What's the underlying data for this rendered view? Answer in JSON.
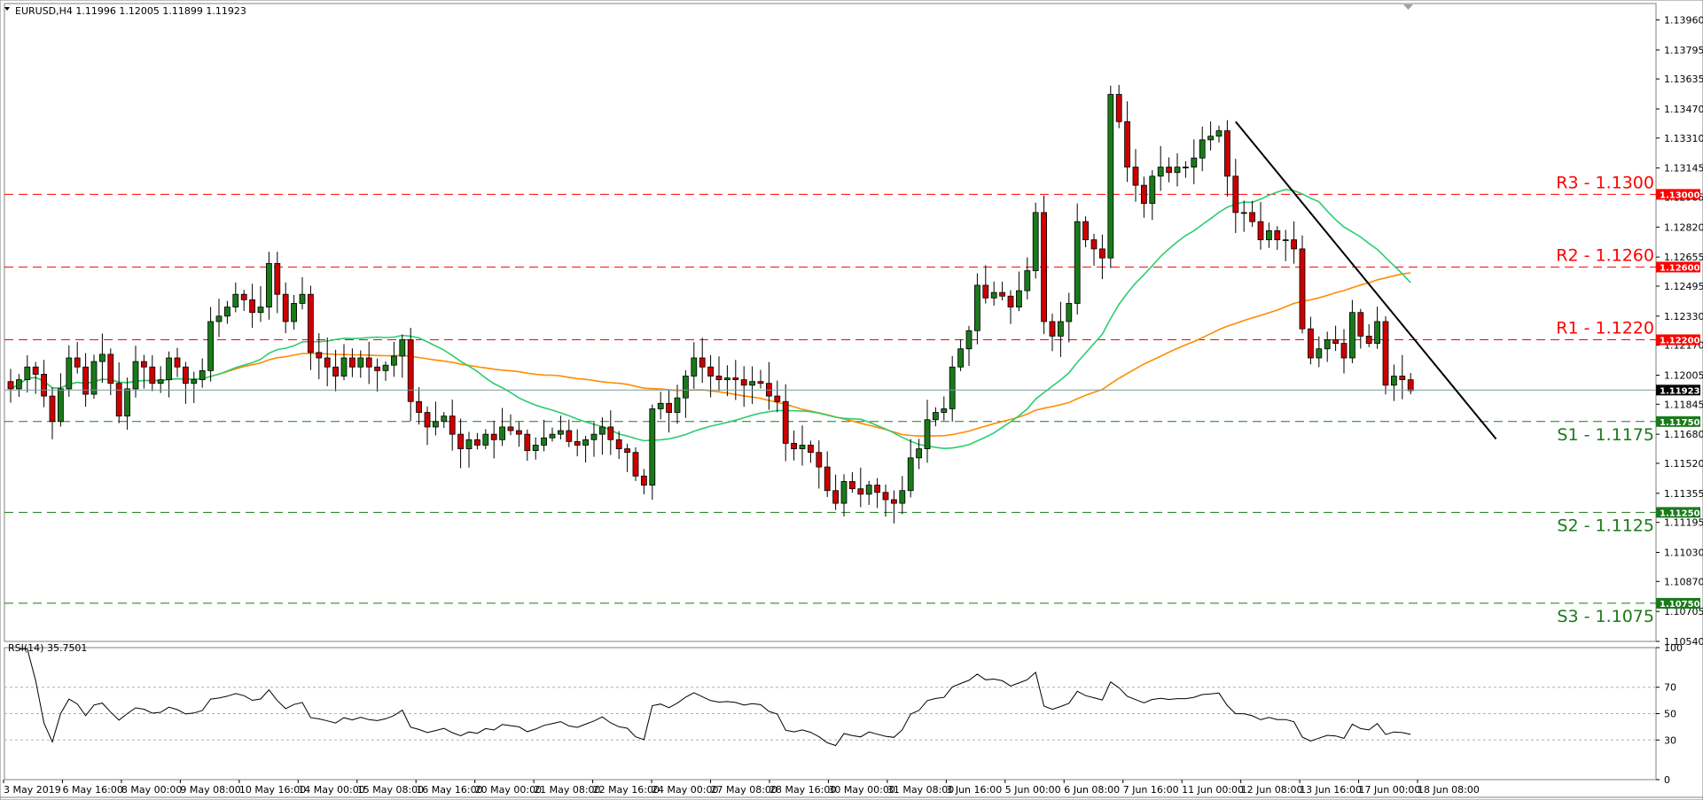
{
  "header": {
    "symbol_info": "EURUSD,H4  1.11996 1.12005 1.11899 1.11923",
    "rsi_info": "RSI(14) 35.7501"
  },
  "colors": {
    "resistance": "#ff0000",
    "support": "#1a7a1a",
    "bull_candle": "#1a7a1a",
    "bear_candle": "#cc0000",
    "ma_fast": "#2ecc71",
    "ma_slow": "#ff8c00",
    "trendline": "#000000",
    "price_line": "#7a9aa0"
  },
  "chart_data": [
    {
      "type": "candlestick",
      "symbol": "EURUSD",
      "timeframe": "H4",
      "ylim": [
        1.1054,
        1.1405
      ],
      "y_ticks": [
        "1.13960",
        "1.13795",
        "1.13635",
        "1.13470",
        "1.13310",
        "1.13145",
        "1.12985",
        "1.12820",
        "1.12655",
        "1.12495",
        "1.12330",
        "1.12170",
        "1.12005",
        "1.11845",
        "1.11680",
        "1.11520",
        "1.11355",
        "1.11195",
        "1.11030",
        "1.10870",
        "1.10705",
        "1.10540"
      ],
      "x_ticks": [
        "3 May 2019",
        "6 May 16:00",
        "8 May 00:00",
        "9 May 08:00",
        "10 May 16:00",
        "14 May 00:00",
        "15 May 08:00",
        "16 May 16:00",
        "20 May 00:00",
        "21 May 08:00",
        "22 May 16:00",
        "24 May 00:00",
        "27 May 08:00",
        "28 May 16:00",
        "30 May 00:00",
        "31 May 08:00",
        "3 Jun 16:00",
        "5 Jun 00:00",
        "6 Jun 08:00",
        "7 Jun 16:00",
        "11 Jun 00:00",
        "12 Jun 08:00",
        "13 Jun 16:00",
        "17 Jun 00:00",
        "18 Jun 08:00"
      ],
      "current_price": "1.11923",
      "close_levels": [
        1.1193,
        1.1198,
        1.1205,
        1.1201,
        1.1189,
        1.1175,
        1.1193,
        1.121,
        1.1205,
        1.119,
        1.1208,
        1.1212,
        1.1196,
        1.1178,
        1.1193,
        1.1208,
        1.1205,
        1.1196,
        1.1198,
        1.121,
        1.1205,
        1.1196,
        1.1198,
        1.1203,
        1.123,
        1.1233,
        1.1238,
        1.1245,
        1.1242,
        1.1235,
        1.1238,
        1.1262,
        1.1245,
        1.123,
        1.124,
        1.1245,
        1.1213,
        1.121,
        1.1205,
        1.12,
        1.121,
        1.1205,
        1.121,
        1.1205,
        1.1203,
        1.1206,
        1.1211,
        1.122,
        1.1186,
        1.118,
        1.1172,
        1.1175,
        1.1178,
        1.1168,
        1.116,
        1.1165,
        1.1162,
        1.1168,
        1.1165,
        1.1172,
        1.117,
        1.1168,
        1.1159,
        1.1162,
        1.1166,
        1.1168,
        1.117,
        1.1164,
        1.1162,
        1.1165,
        1.1168,
        1.1172,
        1.1165,
        1.116,
        1.1158,
        1.1145,
        1.114,
        1.1182,
        1.1185,
        1.118,
        1.1188,
        1.12,
        1.121,
        1.1205,
        1.12,
        1.1198,
        1.1199,
        1.1198,
        1.1195,
        1.1197,
        1.1196,
        1.1189,
        1.1186,
        1.1163,
        1.116,
        1.1162,
        1.1158,
        1.115,
        1.1137,
        1.113,
        1.1142,
        1.1138,
        1.1135,
        1.114,
        1.1136,
        1.1132,
        1.113,
        1.1137,
        1.1155,
        1.116,
        1.1176,
        1.118,
        1.1182,
        1.1205,
        1.1215,
        1.1225,
        1.125,
        1.1243,
        1.1246,
        1.1244,
        1.1238,
        1.1247,
        1.1258,
        1.129,
        1.123,
        1.1222,
        1.123,
        1.124,
        1.1285,
        1.1275,
        1.127,
        1.1265,
        1.1355,
        1.134,
        1.1315,
        1.1305,
        1.1295,
        1.131,
        1.1315,
        1.1312,
        1.1315,
        1.1315,
        1.132,
        1.133,
        1.1332,
        1.1335,
        1.131,
        1.129,
        1.129,
        1.1285,
        1.1275,
        1.128,
        1.1275,
        1.1275,
        1.127,
        1.1226,
        1.121,
        1.1215,
        1.122,
        1.1218,
        1.121,
        1.1235,
        1.1222,
        1.1218,
        1.123,
        1.1195,
        1.12,
        1.1198,
        1.1192
      ],
      "support_resistance": [
        {
          "label": "R3 - 1.1300",
          "value": 1.13,
          "tag": "1.13000",
          "kind": "resistance"
        },
        {
          "label": "R2 - 1.1260",
          "value": 1.126,
          "tag": "1.12600",
          "kind": "resistance"
        },
        {
          "label": "R1 - 1.1220",
          "value": 1.122,
          "tag": "1.12200",
          "kind": "resistance"
        },
        {
          "label": "S1 - 1.1175",
          "value": 1.1175,
          "tag": "1.11750",
          "kind": "support"
        },
        {
          "label": "S2 - 1.1125",
          "value": 1.1125,
          "tag": "1.11250",
          "kind": "support"
        },
        {
          "label": "S3 - 1.1075",
          "value": 1.1075,
          "tag": "1.10750",
          "kind": "support"
        }
      ],
      "trendline": {
        "start": {
          "bar": 147,
          "price": 1.134
        },
        "end": {
          "bar": 174,
          "price": 1.118
        }
      }
    },
    {
      "type": "line",
      "name": "RSI(14)",
      "ylim": [
        0,
        100
      ],
      "y_ticks": [
        "100",
        "70",
        "50",
        "30",
        "0"
      ],
      "levels": [
        70,
        50,
        30
      ],
      "current": 35.7501
    }
  ]
}
